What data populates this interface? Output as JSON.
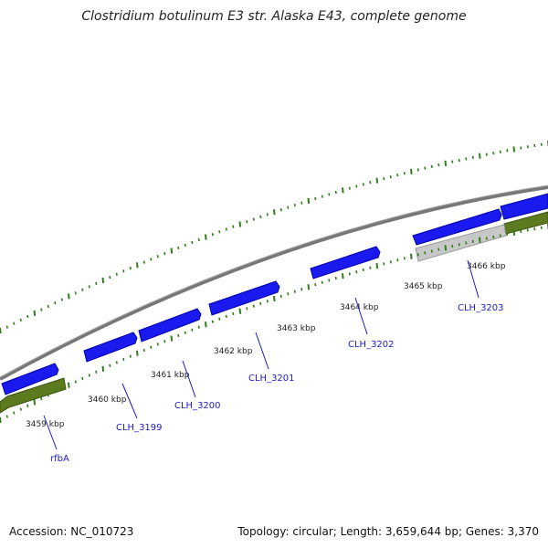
{
  "title": "Clostridium botulinum E3 str. Alaska E43, complete genome",
  "footer": {
    "accession": "Accession: NC_010723",
    "topology": "Topology: circular; Length: 3,659,644 bp; Genes: 3,370"
  },
  "colors": {
    "forward_cds": "#1a1aee",
    "reverse_cds": "#5c7a1e",
    "pseudo": "#c8c8c8",
    "backbone": "#888888",
    "ticks": "#2e7d1a",
    "label": "#1a1acc"
  },
  "ticks": [
    {
      "label": "3459 kbp"
    },
    {
      "label": "3460 kbp"
    },
    {
      "label": "3461 kbp"
    },
    {
      "label": "3462 kbp"
    },
    {
      "label": "3463 kbp"
    },
    {
      "label": "3464 kbp"
    },
    {
      "label": "3465 kbp"
    },
    {
      "label": "3466 kbp"
    }
  ],
  "gene_labels": [
    "rfbA",
    "CLH_3199",
    "CLH_3200",
    "CLH_3201",
    "CLH_3202",
    "CLH_3203"
  ]
}
